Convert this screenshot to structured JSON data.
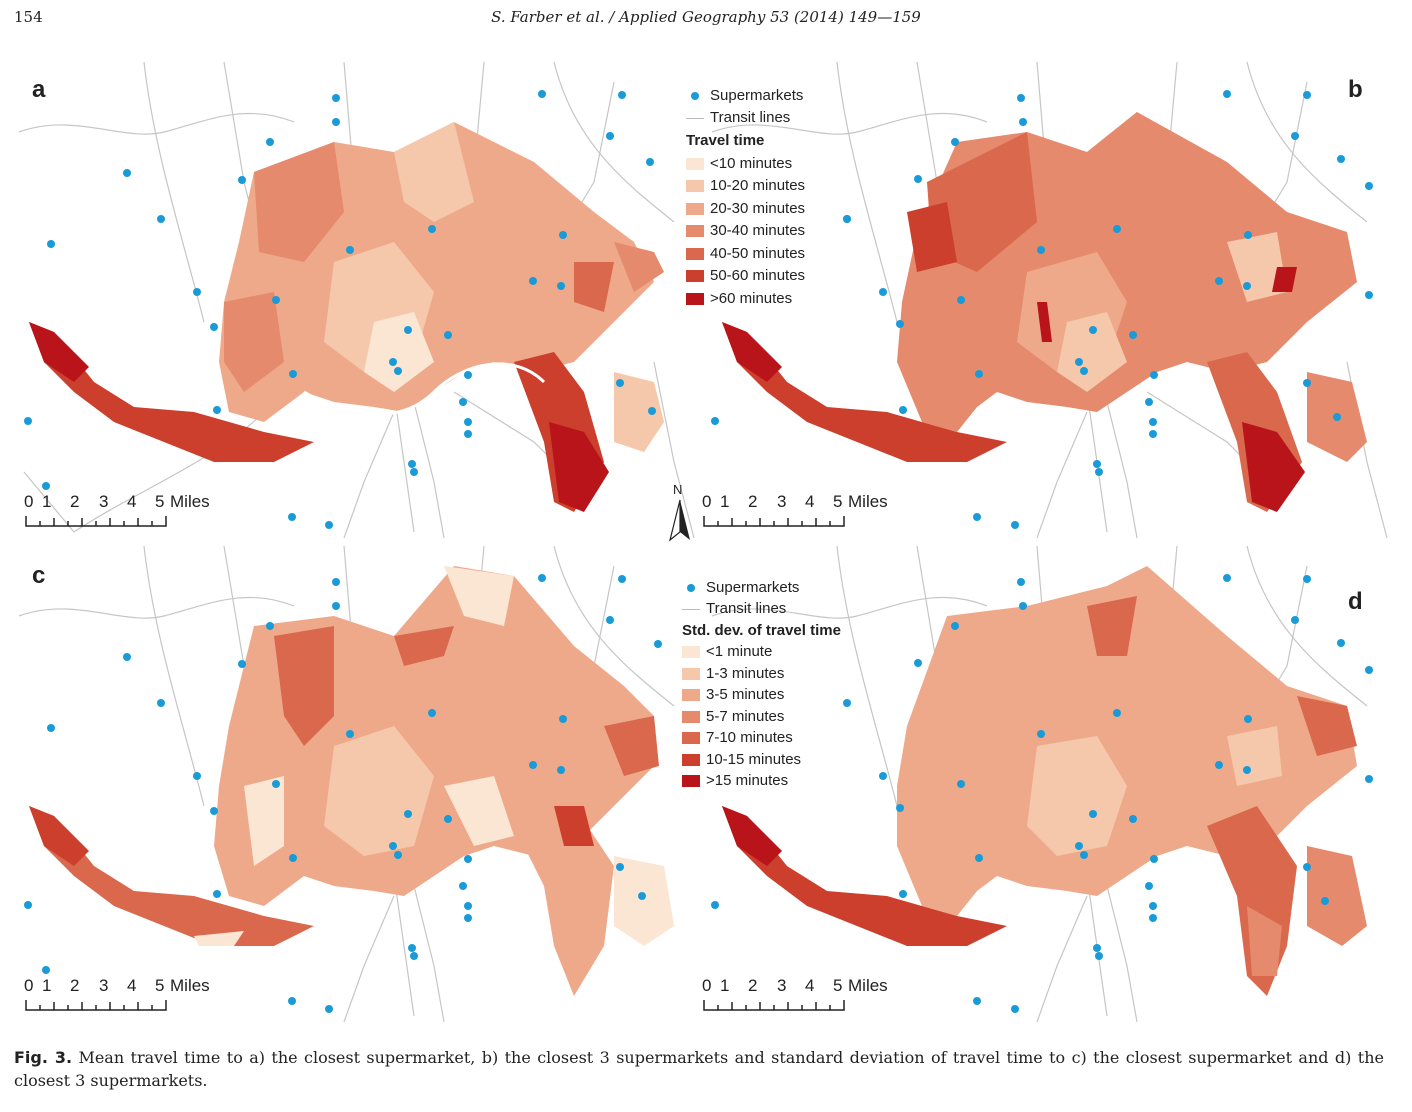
{
  "page": {
    "number": "154",
    "running_head": "S. Farber et al. / Applied Geography 53 (2014) 149—159"
  },
  "figure": {
    "panels": [
      {
        "letter": "a"
      },
      {
        "letter": "b"
      },
      {
        "letter": "c"
      },
      {
        "letter": "d"
      }
    ],
    "scale_bar": {
      "ticks": [
        "0",
        "1",
        "2",
        "3",
        "4",
        "5"
      ],
      "unit": "Miles"
    },
    "north_arrow": {
      "label": "N",
      "icon": "north-arrow-icon"
    },
    "legend_top": {
      "supermarkets_label": "Supermarkets",
      "transit_label": "Transit lines",
      "title": "Travel time",
      "classes": [
        {
          "label": "<10 minutes",
          "color": "#fbe5d3"
        },
        {
          "label": "10-20 minutes",
          "color": "#f6c8ab"
        },
        {
          "label": "20-30 minutes",
          "color": "#eea98a"
        },
        {
          "label": "30-40 minutes",
          "color": "#e58a6c"
        },
        {
          "label": "40-50 minutes",
          "color": "#d9684c"
        },
        {
          "label": "50-60 minutes",
          "color": "#cb3f2c"
        },
        {
          "label": ">60 minutes",
          "color": "#b8141a"
        }
      ]
    },
    "legend_bottom": {
      "supermarkets_label": "Supermarkets",
      "transit_label": "Transit lines",
      "title": "Std. dev. of travel time",
      "classes": [
        {
          "label": "<1 minute",
          "color": "#fbe5d3"
        },
        {
          "label": "1-3 minutes",
          "color": "#f6c8ab"
        },
        {
          "label": "3-5 minutes",
          "color": "#eea98a"
        },
        {
          "label": "5-7 minutes",
          "color": "#e58a6c"
        },
        {
          "label": "7-10 minutes",
          "color": "#d9684c"
        },
        {
          "label": "10-15 minutes",
          "color": "#cb3f2c"
        },
        {
          "label": ">15 minutes",
          "color": "#b8141a"
        }
      ]
    },
    "supermarket_color": "#1a9bd7",
    "transit_color": "#bdbdbd"
  },
  "caption": {
    "label": "Fig. 3.",
    "text": "Mean travel time to a) the closest supermarket, b) the closest 3 supermarkets and standard deviation of travel time to c) the closest supermarket and d) the closest 3 supermarkets."
  }
}
